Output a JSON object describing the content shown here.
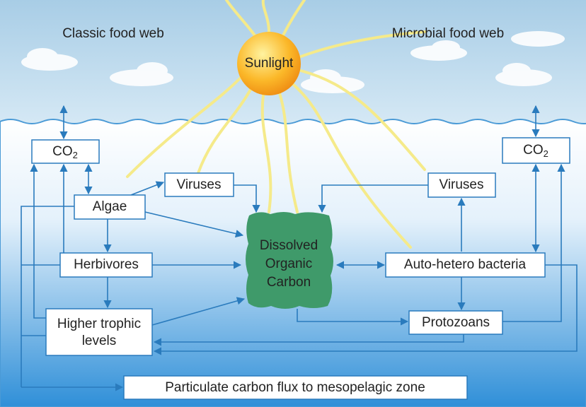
{
  "titles": {
    "classic": "Classic food web",
    "microbial": "Microbial food web"
  },
  "sun": "Sunlight",
  "nodes": [
    {
      "label": "CO",
      "sub": "2"
    },
    {
      "label": "Viruses"
    },
    {
      "label": "Algae"
    },
    {
      "label": "Herbivores"
    },
    {
      "lines": [
        "Higher trophic",
        "levels"
      ]
    },
    {
      "lines": [
        "Dissolved",
        "Organic",
        "Carbon"
      ]
    },
    {
      "label": "CO",
      "sub": "2"
    },
    {
      "label": "Viruses"
    },
    {
      "label": "Auto-hetero bacteria"
    },
    {
      "label": "Protozoans"
    },
    {
      "label": "Particulate carbon flux to mesopelagic zone"
    }
  ]
}
